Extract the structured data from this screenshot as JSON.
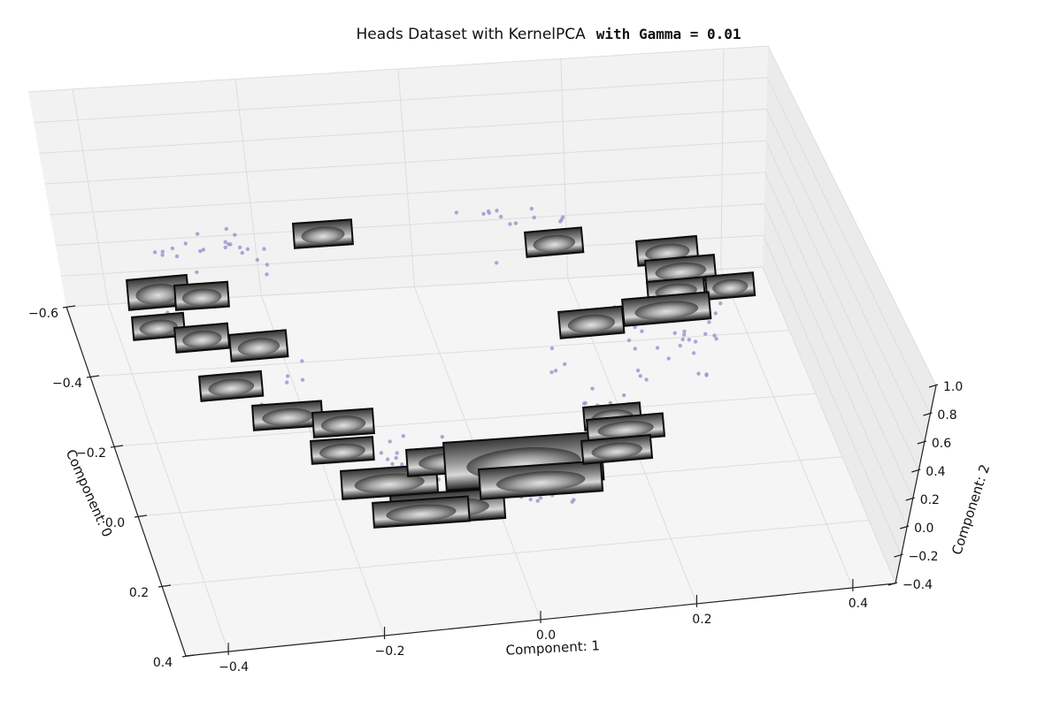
{
  "chart_data": {
    "type": "scatter",
    "projection": "3d",
    "title": {
      "main": "Heads Dataset with KernelPCA",
      "suffix": "with Gamma = 0.01"
    },
    "xlabel": "Component: 0",
    "ylabel": "Component: 1",
    "zlabel": "Component: 2",
    "x_ticks": [
      "−0.6",
      "−0.4",
      "−0.2",
      "0.0",
      "0.2",
      "0.4"
    ],
    "y_ticks": [
      "−0.4",
      "−0.2",
      "0.0",
      "0.2",
      "0.4"
    ],
    "z_ticks": [
      "−0.4",
      "−0.2",
      "0.0",
      "0.2",
      "0.4",
      "0.6",
      "0.8",
      "1.0"
    ],
    "grid": true,
    "marker_color": "#9a9ad0",
    "thumbnail_description": "grayscale face-image thumbnails placed at projected points",
    "colors": {
      "pane_back": "#f2f2f2",
      "pane_side": "#ebebeb",
      "pane_floor": "#f5f5f5",
      "grid": "#dddddd",
      "axis": "#222222"
    }
  }
}
